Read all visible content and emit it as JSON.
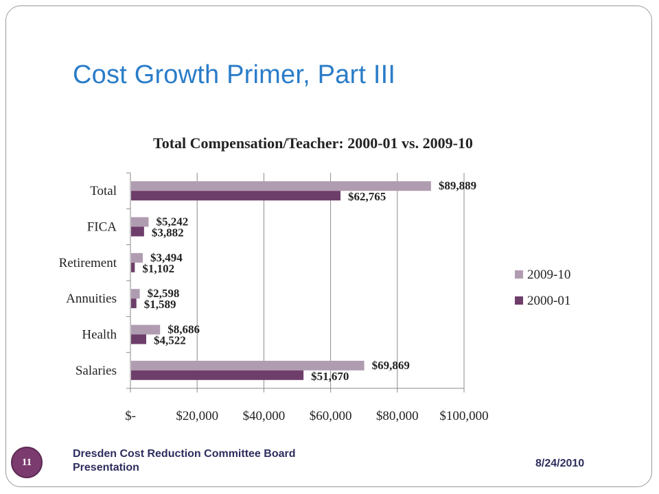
{
  "slide": {
    "title": "Cost Growth Primer, Part III",
    "footer_text": "Dresden Cost Reduction Committee Board Presentation",
    "date": "8/24/2010",
    "page_number": "11",
    "title_color": "#2a7cc8",
    "badge_color": "#7b3b6e"
  },
  "chart_data": {
    "type": "bar",
    "orientation": "horizontal",
    "title": "Total Compensation/Teacher: 2000-01 vs. 2009-10",
    "categories": [
      "Total",
      "FICA",
      "Retirement",
      "Annuities",
      "Health",
      "Salaries"
    ],
    "series": [
      {
        "name": "2009-10",
        "color": "#b09cb0",
        "values": [
          89889,
          5242,
          3494,
          2598,
          8686,
          69869
        ],
        "labels": [
          "$89,889",
          "$5,242",
          "$3,494",
          "$2,598",
          "$8,686",
          "$69,869"
        ]
      },
      {
        "name": "2000-01",
        "color": "#6e3e6a",
        "values": [
          62765,
          3882,
          1102,
          1589,
          4522,
          51670
        ],
        "labels": [
          "$62,765",
          "$3,882",
          "$1,102",
          "$1,589",
          "$4,522",
          "$51,670"
        ]
      }
    ],
    "xlim": [
      0,
      100000
    ],
    "xticks": [
      0,
      20000,
      40000,
      60000,
      80000,
      100000
    ],
    "xtick_labels": [
      "$-",
      "$20,000",
      "$40,000",
      "$60,000",
      "$80,000",
      "$100,000"
    ],
    "grid": "vertical",
    "legend": "right"
  }
}
